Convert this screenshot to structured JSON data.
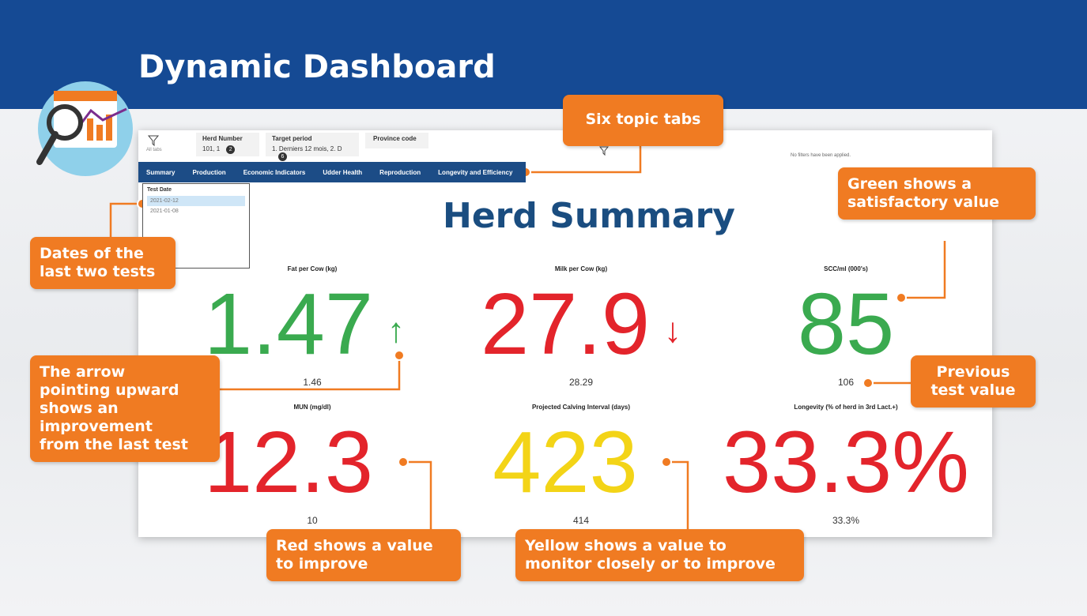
{
  "header": {
    "title": "Dynamic Dashboard"
  },
  "dashboard": {
    "filters": [
      {
        "label": "All tabs"
      },
      {
        "label": "Herd Number",
        "value": "101, 1",
        "badge": "2"
      },
      {
        "label": "Target period",
        "value": "1. Derniers 12 mois, 2. D",
        "badge": "6"
      },
      {
        "label": "Province code"
      }
    ],
    "filter_status": "No filters have been applied.",
    "tabs": [
      "Summary",
      "Production",
      "Economic Indicators",
      "Udder Health",
      "Reproduction",
      "Longevity and Efficiency"
    ],
    "test_date": {
      "label": "Test Date",
      "dates": [
        "2021-02-12",
        "2021-01-08"
      ]
    },
    "heading": "Herd Summary",
    "kpis": [
      {
        "title": "Fat per Cow (kg)",
        "value": "1.47",
        "arrow": "↑",
        "previous": "1.46",
        "color": "#3aaa4f"
      },
      {
        "title": "Milk per Cow (kg)",
        "value": "27.9",
        "arrow": "↓",
        "previous": "28.29",
        "color": "#e3242b"
      },
      {
        "title": "SCC/ml (000's)",
        "value": "85",
        "previous": "106",
        "color": "#3aaa4f"
      },
      {
        "title": "MUN (mg/dl)",
        "value": "12.3",
        "previous": "10",
        "color": "#e3242b"
      },
      {
        "title": "Projected Calving Interval (days)",
        "value": "423",
        "previous": "414",
        "color": "#f3d417"
      },
      {
        "title": "Longevity (% of herd in 3rd Lact.+)",
        "value": "33.3%",
        "previous": "33.3%",
        "color": "#e3242b"
      }
    ]
  },
  "callouts": [
    {
      "lines": [
        "Six topic tabs"
      ]
    },
    {
      "lines": [
        "Green shows a",
        "satisfactory value"
      ]
    },
    {
      "lines": [
        "Dates of the",
        "last two tests"
      ]
    },
    {
      "lines": [
        "The arrow",
        "pointing upward",
        "shows an",
        "improvement",
        "from the last test"
      ]
    },
    {
      "lines": [
        "Previous",
        "test value"
      ]
    },
    {
      "lines": [
        "Red shows a value",
        "to improve"
      ]
    },
    {
      "lines": [
        "Yellow shows a value to",
        "monitor  closely or to improve"
      ]
    }
  ]
}
